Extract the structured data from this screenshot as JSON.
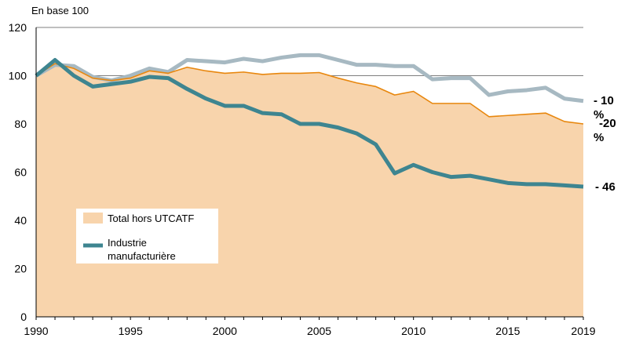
{
  "chart_data": {
    "type": "line",
    "unit_label": "En base 100",
    "x": [
      1990,
      1991,
      1992,
      1993,
      1994,
      1995,
      1996,
      1997,
      1998,
      1999,
      2000,
      2001,
      2002,
      2003,
      2004,
      2005,
      2006,
      2007,
      2008,
      2009,
      2010,
      2011,
      2012,
      2013,
      2014,
      2015,
      2016,
      2017,
      2018,
      2019
    ],
    "xlim": [
      1990,
      2019
    ],
    "x_ticks": [
      "1990",
      "1995",
      "2000",
      "2005",
      "2010",
      "2015",
      "2019"
    ],
    "ylim": [
      0,
      120
    ],
    "y_ticks": [
      "0",
      "20",
      "40",
      "60",
      "80",
      "100",
      "120"
    ],
    "grid": "horizontal",
    "series": [
      {
        "name": "Total hors UTCATF",
        "style": "area",
        "fill_color": "#f8d4ac",
        "line_color": "#e8870e",
        "values": [
          100,
          105,
          103,
          99,
          98,
          99,
          102,
          101,
          103.5,
          102,
          101,
          101.5,
          100.5,
          101,
          101,
          101.3,
          99,
          97,
          95.5,
          92,
          93.5,
          88.5,
          88.5,
          88.5,
          83,
          83.5,
          84,
          84.5,
          81,
          80
        ],
        "end_label": "-20 %"
      },
      {
        "name": "Industrie manufacturière",
        "style": "line",
        "line_color": "#3e8590",
        "values": [
          100,
          106.5,
          100,
          95.5,
          96.5,
          97.5,
          99.5,
          99,
          94.5,
          90.5,
          87.5,
          87.5,
          84.5,
          84,
          80,
          80,
          78.5,
          76,
          71.5,
          59.5,
          63,
          60,
          58,
          58.5,
          57,
          55.5,
          55,
          55,
          54.5,
          54
        ],
        "end_label": "- 46"
      },
      {
        "name": "",
        "style": "line",
        "line_color": "#a7b9c2",
        "values": [
          100,
          104.5,
          104,
          99.5,
          98,
          100,
          103,
          101.5,
          106.5,
          106,
          105.5,
          107,
          106,
          107.5,
          108.5,
          108.5,
          106.5,
          104.5,
          104.5,
          104,
          104,
          98.5,
          99,
          99,
          92,
          93.5,
          94,
          95,
          90.5,
          89.5
        ],
        "end_label": "- 10 %"
      }
    ],
    "legend": [
      {
        "label": "Total hors UTCATF",
        "symbol": "swatch",
        "color": "#f8d4ac"
      },
      {
        "label_lines": [
          "Industrie",
          "manufacturière"
        ],
        "symbol": "line",
        "color": "#3e8590"
      }
    ]
  }
}
